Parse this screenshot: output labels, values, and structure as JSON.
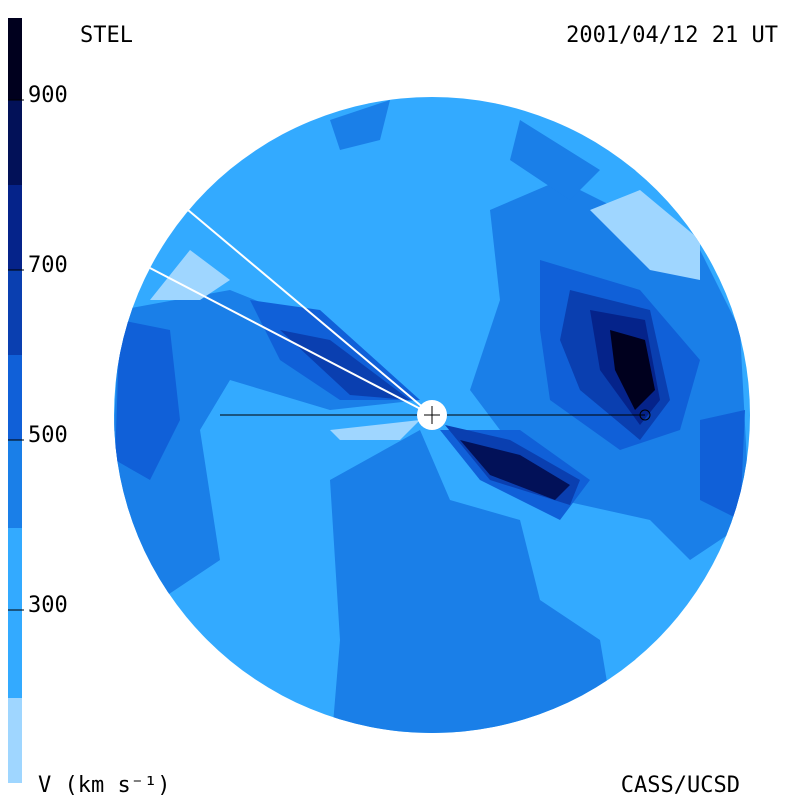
{
  "header": {
    "left": "STEL",
    "right": "2001/04/12 21 UT"
  },
  "colorbar": {
    "ticks": [
      "900",
      "700",
      "500",
      "300"
    ],
    "label": "V (km s⁻¹)"
  },
  "footer": {
    "right": "CASS/UCSD"
  }
}
